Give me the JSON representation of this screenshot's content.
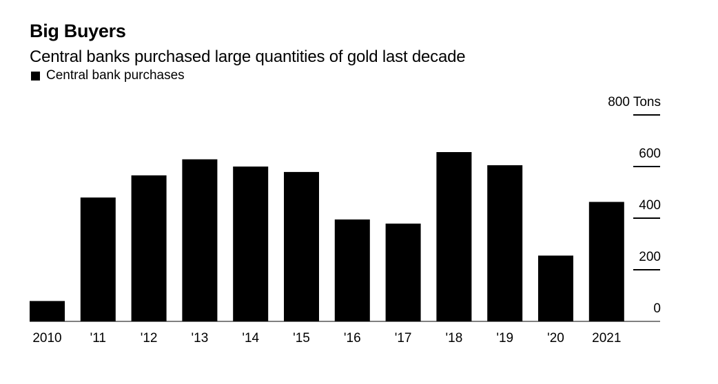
{
  "title": "Big Buyers",
  "subtitle": "Central banks purchased large quantities of gold last decade",
  "legend": {
    "label": "Central bank purchases",
    "color": "#000000"
  },
  "chart_data": {
    "type": "bar",
    "title": "Big Buyers",
    "subtitle": "Central banks purchased large quantities of gold last decade",
    "categories": [
      "2010",
      "'11",
      "'12",
      "'13",
      "'14",
      "'15",
      "'16",
      "'17",
      "'18",
      "'19",
      "'20",
      "2021"
    ],
    "series": [
      {
        "name": "Central bank purchases",
        "color": "#000000",
        "values": [
          79,
          480,
          566,
          628,
          600,
          579,
          395,
          379,
          656,
          605,
          255,
          463
        ]
      }
    ],
    "y_axis": {
      "position": "right",
      "ylim": [
        0,
        800
      ],
      "ticks": [
        0,
        200,
        400,
        600,
        800
      ],
      "tick_labels": [
        "0",
        "200",
        "400",
        "600",
        "800 Tons"
      ],
      "unit": "Tons"
    },
    "grid": false,
    "legend_position": "top-left"
  }
}
